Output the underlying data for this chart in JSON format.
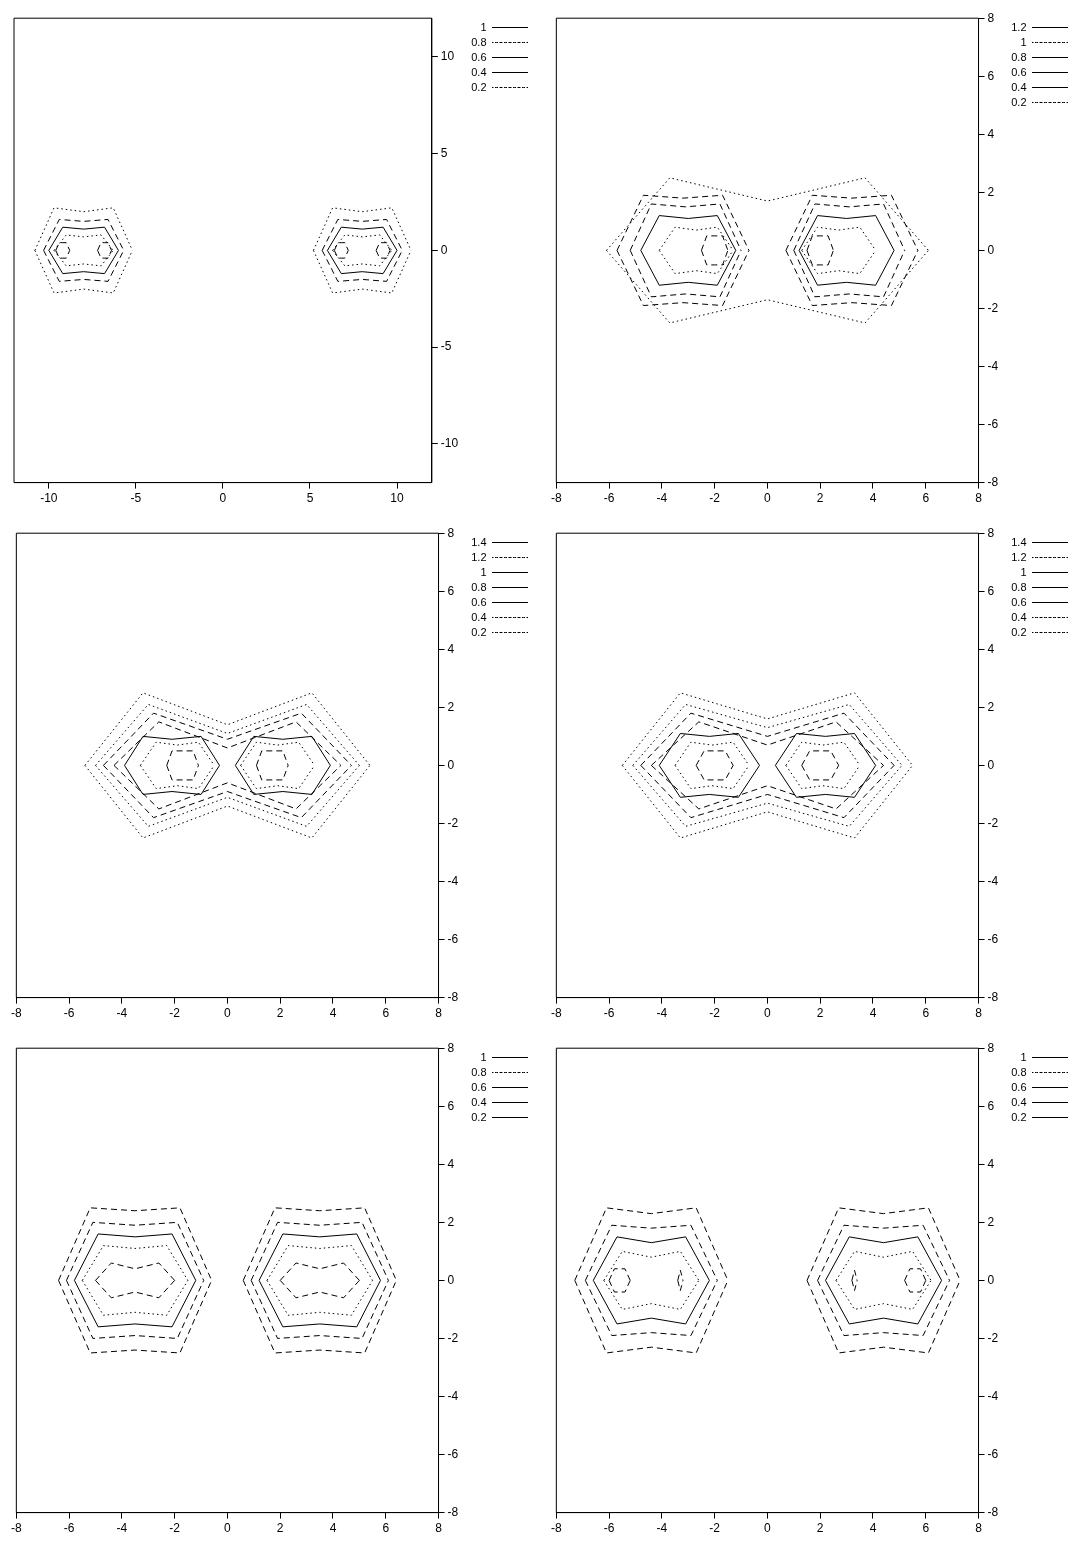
{
  "chart_data": [
    {
      "type": "line",
      "xlim": [
        -12,
        12
      ],
      "ylim": [
        -12,
        12
      ],
      "xticks": [
        -10,
        -5,
        0,
        5,
        10
      ],
      "yticks": [
        -10,
        -5,
        0,
        5,
        10
      ],
      "legend": "top right",
      "marker": "none",
      "series": [
        {
          "name": "1",
          "color": "#000000",
          "line_style": "dashed",
          "x": [
            -9.6,
            -9.4,
            -9.2,
            -9,
            -8.8,
            null,
            -9.6,
            -9.4,
            -9.2,
            -9,
            -8.8,
            null,
            -7.2,
            -7,
            -6.8,
            -6.6,
            -6.4,
            null,
            -7.2,
            -7,
            -6.8,
            -6.6,
            -6.4,
            null,
            6.4,
            6.6,
            6.8,
            7,
            7.2,
            null,
            6.4,
            6.6,
            6.8,
            7,
            7.2,
            null,
            8.8,
            9,
            9.2,
            9.4,
            9.6,
            null,
            8.8,
            9,
            9.2,
            9.4,
            9.6
          ],
          "values": [
            0,
            0.4,
            0.4,
            0.4,
            0,
            null,
            0,
            -0.4,
            -0.4,
            -0.4,
            0,
            null,
            0,
            0.4,
            0.4,
            0.4,
            0,
            null,
            0,
            -0.4,
            -0.4,
            -0.4,
            0,
            null,
            0,
            0.4,
            0.4,
            0.4,
            0,
            null,
            0,
            -0.4,
            -0.4,
            -0.4,
            0,
            null,
            0,
            0.4,
            0.4,
            0.4,
            0,
            null,
            0,
            -0.4,
            -0.4,
            -0.4,
            0
          ]
        },
        {
          "name": "0.8",
          "color": "#000000",
          "line_style": "dotted",
          "x": [
            -9.7,
            -9,
            -8,
            -7,
            -6.3,
            null,
            -9.7,
            -9,
            -8,
            -7,
            -6.3,
            null,
            6.3,
            7,
            8,
            9,
            9.7,
            null,
            6.3,
            7,
            8,
            9,
            9.7
          ],
          "values": [
            0,
            0.8,
            0.7,
            0.8,
            0,
            null,
            0,
            -0.8,
            -0.7,
            -0.8,
            0,
            null,
            0,
            0.8,
            0.7,
            0.8,
            0,
            null,
            0,
            -0.8,
            -0.7,
            -0.8,
            0
          ]
        },
        {
          "name": "0.6",
          "color": "#000000",
          "line_style": "solid",
          "x": [
            -10,
            -9.2,
            -8,
            -6.8,
            -6,
            null,
            -10,
            -9.2,
            -8,
            -6.8,
            -6,
            null,
            6,
            6.8,
            8,
            9.2,
            10,
            null,
            6,
            6.8,
            8,
            9.2,
            10
          ],
          "values": [
            0,
            1.2,
            1.1,
            1.2,
            0,
            null,
            0,
            -1.2,
            -1.1,
            -1.2,
            0,
            null,
            0,
            1.2,
            1.1,
            1.2,
            0,
            null,
            0,
            -1.2,
            -1.1,
            -1.2,
            0
          ]
        },
        {
          "name": "0.4",
          "color": "#000000",
          "line_style": "dashed",
          "x": [
            -10.3,
            -9.4,
            -8,
            -6.6,
            -5.7,
            null,
            -10.3,
            -9.4,
            -8,
            -6.6,
            -5.7,
            null,
            5.7,
            6.6,
            8,
            9.4,
            10.3,
            null,
            5.7,
            6.6,
            8,
            9.4,
            10.3
          ],
          "values": [
            0,
            1.6,
            1.5,
            1.6,
            0,
            null,
            0,
            -1.6,
            -1.5,
            -1.6,
            0,
            null,
            0,
            1.6,
            1.5,
            1.6,
            0,
            null,
            0,
            -1.6,
            -1.5,
            -1.6,
            0
          ]
        },
        {
          "name": "0.2",
          "color": "#000000",
          "line_style": "dotted",
          "x": [
            -10.8,
            -9.7,
            -8,
            -6.3,
            -5.2,
            null,
            -10.8,
            -9.7,
            -8,
            -6.3,
            -5.2,
            null,
            5.2,
            6.3,
            8,
            9.7,
            10.8,
            null,
            5.2,
            6.3,
            8,
            9.7,
            10.8
          ],
          "values": [
            0,
            2.2,
            2,
            2.2,
            0,
            null,
            0,
            -2.2,
            -2,
            -2.2,
            0,
            null,
            0,
            2.2,
            2,
            2.2,
            0,
            null,
            0,
            -2.2,
            -2,
            -2.2,
            0
          ]
        }
      ]
    },
    {
      "type": "line",
      "xlim": [
        -8,
        8
      ],
      "ylim": [
        -8,
        8
      ],
      "xticks": [
        -8,
        -6,
        -4,
        -2,
        0,
        2,
        4,
        6,
        8
      ],
      "yticks": [
        -8,
        -6,
        -4,
        -2,
        0,
        2,
        4,
        6,
        8
      ],
      "legend": "top right",
      "marker": "none",
      "series": [
        {
          "name": "1.2",
          "color": "#000000",
          "line_style": "dashed",
          "x": [
            -2.5,
            -2.3,
            -2,
            -1.7,
            -1.5,
            null,
            -2.5,
            -2.3,
            -2,
            -1.7,
            -1.5,
            null,
            1.5,
            1.7,
            2,
            2.3,
            2.5,
            null,
            1.5,
            1.7,
            2,
            2.3,
            2.5
          ],
          "values": [
            0,
            0.5,
            0.5,
            0.5,
            0,
            null,
            0,
            -0.5,
            -0.5,
            -0.5,
            0,
            null,
            0,
            0.5,
            0.5,
            0.5,
            0,
            null,
            0,
            -0.5,
            -0.5,
            -0.5,
            0
          ]
        },
        {
          "name": "1",
          "color": "#000000",
          "line_style": "dotted",
          "x": [
            -4.1,
            -3.5,
            -2.7,
            -1.9,
            -1.3,
            null,
            -4.1,
            -3.5,
            -2.7,
            -1.9,
            -1.3,
            null,
            1.3,
            1.9,
            2.7,
            3.5,
            4.1,
            null,
            1.3,
            1.9,
            2.7,
            3.5,
            4.1
          ],
          "values": [
            0,
            0.8,
            0.7,
            0.8,
            0,
            null,
            0,
            -0.8,
            -0.7,
            -0.8,
            0,
            null,
            0,
            0.8,
            0.7,
            0.8,
            0,
            null,
            0,
            -0.8,
            -0.7,
            -0.8,
            0
          ]
        },
        {
          "name": "0.8",
          "color": "#000000",
          "line_style": "solid",
          "x": [
            -4.8,
            -4.1,
            -3,
            -1.9,
            -1.2,
            null,
            -4.8,
            -4.1,
            -3,
            -1.9,
            -1.2,
            null,
            1.2,
            1.9,
            3,
            4.1,
            4.8,
            null,
            1.2,
            1.9,
            3,
            4.1,
            4.8
          ],
          "values": [
            0,
            1.2,
            1.1,
            1.2,
            0,
            null,
            0,
            -1.2,
            -1.1,
            -1.2,
            0,
            null,
            0,
            1.2,
            1.1,
            1.2,
            0,
            null,
            0,
            -1.2,
            -1.1,
            -1.2,
            0
          ]
        },
        {
          "name": "0.6",
          "color": "#000000",
          "line_style": "dashed",
          "x": [
            -5.2,
            -4.4,
            -3.1,
            -1.8,
            -1,
            null,
            -5.2,
            -4.4,
            -3.1,
            -1.8,
            -1,
            null,
            1,
            1.8,
            3.1,
            4.4,
            5.2,
            null,
            1,
            1.8,
            3.1,
            4.4,
            5.2
          ],
          "values": [
            0,
            1.6,
            1.5,
            1.6,
            0,
            null,
            0,
            -1.6,
            -1.5,
            -1.6,
            0,
            null,
            0,
            1.6,
            1.5,
            1.6,
            0,
            null,
            0,
            -1.6,
            -1.5,
            -1.6,
            0
          ]
        },
        {
          "name": "0.4",
          "color": "#000000",
          "line_style": "dashed",
          "x": [
            -5.7,
            -4.7,
            -3.2,
            -1.7,
            -0.7,
            null,
            -5.7,
            -4.7,
            -3.2,
            -1.7,
            -0.7,
            null,
            0.7,
            1.7,
            3.2,
            4.7,
            5.7,
            null,
            0.7,
            1.7,
            3.2,
            4.7,
            5.7
          ],
          "values": [
            0,
            1.9,
            1.8,
            1.9,
            0,
            null,
            0,
            -1.9,
            -1.8,
            -1.9,
            0,
            null,
            0,
            1.9,
            1.8,
            1.9,
            0,
            null,
            0,
            -1.9,
            -1.8,
            -1.9,
            0
          ]
        },
        {
          "name": "0.2",
          "color": "#000000",
          "line_style": "dotted",
          "x": [
            -6.1,
            -3.7,
            0,
            3.7,
            6.1,
            null,
            -6.1,
            -3.7,
            0,
            3.7,
            6.1
          ],
          "values": [
            0,
            2.5,
            1.7,
            2.5,
            0,
            null,
            0,
            -2.5,
            -1.7,
            -2.5,
            0
          ]
        }
      ]
    },
    {
      "type": "line",
      "xlim": [
        -8,
        8
      ],
      "ylim": [
        -8,
        8
      ],
      "xticks": [
        -8,
        -6,
        -4,
        -2,
        0,
        2,
        4,
        6,
        8
      ],
      "yticks": [
        -8,
        -6,
        -4,
        -2,
        0,
        2,
        4,
        6,
        8
      ],
      "legend": "top right",
      "marker": "none",
      "series": [
        {
          "name": "1.4",
          "color": "#000000",
          "line_style": "dashed",
          "x": [
            -2.3,
            -2.1,
            -1.7,
            -1.3,
            -1.1,
            null,
            -2.3,
            -2.1,
            -1.7,
            -1.3,
            -1.1,
            null,
            1.1,
            1.3,
            1.7,
            2.1,
            2.3,
            null,
            1.1,
            1.3,
            1.7,
            2.1,
            2.3
          ],
          "values": [
            0,
            0.5,
            0.5,
            0.5,
            0,
            null,
            0,
            -0.5,
            -0.5,
            -0.5,
            0,
            null,
            0,
            0.5,
            0.5,
            0.5,
            0,
            null,
            0,
            -0.5,
            -0.5,
            -0.5,
            0
          ]
        },
        {
          "name": "1.2",
          "color": "#000000",
          "line_style": "dotted",
          "x": [
            -3.3,
            -2.7,
            -1.9,
            -1.1,
            -0.5,
            null,
            -3.3,
            -2.7,
            -1.9,
            -1.1,
            -0.5,
            null,
            0.5,
            1.1,
            1.9,
            2.7,
            3.3,
            null,
            0.5,
            1.1,
            1.9,
            2.7,
            3.3
          ],
          "values": [
            0,
            0.8,
            0.7,
            0.8,
            0,
            null,
            0,
            -0.8,
            -0.7,
            -0.8,
            0,
            null,
            0,
            0.8,
            0.7,
            0.8,
            0,
            null,
            0,
            -0.8,
            -0.7,
            -0.8,
            0
          ]
        },
        {
          "name": "1",
          "color": "#000000",
          "line_style": "solid",
          "x": [
            -3.9,
            -3.2,
            -2.1,
            -1,
            -0.3,
            null,
            -3.9,
            -3.2,
            -2.1,
            -1,
            -0.3,
            null,
            0.3,
            1,
            2.1,
            3.2,
            3.9,
            null,
            0.3,
            1,
            2.1,
            3.2,
            3.9
          ],
          "values": [
            0,
            1,
            0.9,
            1,
            0,
            null,
            0,
            -1,
            -0.9,
            -1,
            0,
            null,
            0,
            1,
            0.9,
            1,
            0,
            null,
            0,
            -1,
            -0.9,
            -1,
            0
          ]
        },
        {
          "name": "0.8",
          "color": "#000000",
          "line_style": "dashed",
          "x": [
            -4.3,
            -2.6,
            0,
            2.6,
            4.3,
            null,
            -4.3,
            -2.6,
            0,
            2.6,
            4.3
          ],
          "values": [
            0,
            1.5,
            0.6,
            1.5,
            0,
            null,
            0,
            -1.5,
            -0.6,
            -1.5,
            0
          ]
        },
        {
          "name": "0.6",
          "color": "#000000",
          "line_style": "dashed",
          "x": [
            -4.7,
            -2.8,
            0,
            2.8,
            4.7,
            null,
            -4.7,
            -2.8,
            0,
            2.8,
            4.7
          ],
          "values": [
            0,
            1.8,
            0.9,
            1.8,
            0,
            null,
            0,
            -1.8,
            -0.9,
            -1.8,
            0
          ]
        },
        {
          "name": "0.4",
          "color": "#000000",
          "line_style": "dotted",
          "x": [
            -5,
            -3,
            0,
            3,
            5,
            null,
            -5,
            -3,
            0,
            3,
            5
          ],
          "values": [
            0,
            2.1,
            1.1,
            2.1,
            0,
            null,
            0,
            -2.1,
            -1.1,
            -2.1,
            0
          ]
        },
        {
          "name": "0.2",
          "color": "#000000",
          "line_style": "dotted",
          "x": [
            -5.4,
            -3.2,
            0,
            3.2,
            5.4,
            null,
            -5.4,
            -3.2,
            0,
            3.2,
            5.4
          ],
          "values": [
            0,
            2.5,
            1.4,
            2.5,
            0,
            null,
            0,
            -2.5,
            -1.4,
            -2.5,
            0
          ]
        }
      ]
    },
    {
      "type": "line",
      "xlim": [
        -8,
        8
      ],
      "ylim": [
        -8,
        8
      ],
      "xticks": [
        -8,
        -6,
        -4,
        -2,
        0,
        2,
        4,
        6,
        8
      ],
      "yticks": [
        -8,
        -6,
        -4,
        -2,
        0,
        2,
        4,
        6,
        8
      ],
      "legend": "top right",
      "marker": "none",
      "series": [
        {
          "name": "1.4",
          "color": "#000000",
          "line_style": "dashed",
          "x": [
            -2.7,
            -2.4,
            -2,
            -1.6,
            -1.3,
            null,
            -2.7,
            -2.4,
            -2,
            -1.6,
            -1.3,
            null,
            1.3,
            1.6,
            2,
            2.4,
            2.7,
            null,
            1.3,
            1.6,
            2,
            2.4,
            2.7
          ],
          "values": [
            0,
            0.5,
            0.5,
            0.5,
            0,
            null,
            0,
            -0.5,
            -0.5,
            -0.5,
            0,
            null,
            0,
            0.5,
            0.5,
            0.5,
            0,
            null,
            0,
            -0.5,
            -0.5,
            -0.5,
            0
          ]
        },
        {
          "name": "1.2",
          "color": "#000000",
          "line_style": "dotted",
          "x": [
            -3.5,
            -2.9,
            -2.1,
            -1.3,
            -0.7,
            null,
            -3.5,
            -2.9,
            -2.1,
            -1.3,
            -0.7,
            null,
            0.7,
            1.3,
            2.1,
            2.9,
            3.5,
            null,
            0.7,
            1.3,
            2.1,
            2.9,
            3.5
          ],
          "values": [
            0,
            0.8,
            0.7,
            0.8,
            0,
            null,
            0,
            -0.8,
            -0.7,
            -0.8,
            0,
            null,
            0,
            0.8,
            0.7,
            0.8,
            0,
            null,
            0,
            -0.8,
            -0.7,
            -0.8,
            0
          ]
        },
        {
          "name": "1",
          "color": "#000000",
          "line_style": "solid",
          "x": [
            -4.1,
            -3.3,
            -2.2,
            -1.1,
            -0.3,
            null,
            -4.1,
            -3.3,
            -2.2,
            -1.1,
            -0.3,
            null,
            0.3,
            1.1,
            2.2,
            3.3,
            4.1,
            null,
            0.3,
            1.1,
            2.2,
            3.3,
            4.1
          ],
          "values": [
            0,
            1.1,
            1,
            1.1,
            0,
            null,
            0,
            -1.1,
            -1,
            -1.1,
            0,
            null,
            0,
            1.1,
            1,
            1.1,
            0,
            null,
            0,
            -1.1,
            -1,
            -1.1,
            0
          ]
        },
        {
          "name": "0.8",
          "color": "#000000",
          "line_style": "dashed",
          "x": [
            -4.4,
            -2.6,
            0,
            2.6,
            4.4,
            null,
            -4.4,
            -2.6,
            0,
            2.6,
            4.4
          ],
          "values": [
            0,
            1.5,
            0.7,
            1.5,
            0,
            null,
            0,
            -1.5,
            -0.7,
            -1.5,
            0
          ]
        },
        {
          "name": "0.6",
          "color": "#000000",
          "line_style": "dashed",
          "x": [
            -4.8,
            -2.9,
            0,
            2.9,
            4.8,
            null,
            -4.8,
            -2.9,
            0,
            2.9,
            4.8
          ],
          "values": [
            0,
            1.8,
            1,
            1.8,
            0,
            null,
            0,
            -1.8,
            -1,
            -1.8,
            0
          ]
        },
        {
          "name": "0.4",
          "color": "#000000",
          "line_style": "dotted",
          "x": [
            -5.1,
            -3.1,
            0,
            3.1,
            5.1,
            null,
            -5.1,
            -3.1,
            0,
            3.1,
            5.1
          ],
          "values": [
            0,
            2.1,
            1.3,
            2.1,
            0,
            null,
            0,
            -2.1,
            -1.3,
            -2.1,
            0
          ]
        },
        {
          "name": "0.2",
          "color": "#000000",
          "line_style": "dotted",
          "x": [
            -5.5,
            -3.3,
            0,
            3.3,
            5.5,
            null,
            -5.5,
            -3.3,
            0,
            3.3,
            5.5
          ],
          "values": [
            0,
            2.5,
            1.6,
            2.5,
            0,
            null,
            0,
            -2.5,
            -1.6,
            -2.5,
            0
          ]
        }
      ]
    },
    {
      "type": "line",
      "xlim": [
        -8,
        8
      ],
      "ylim": [
        -8,
        8
      ],
      "xticks": [
        -8,
        -6,
        -4,
        -2,
        0,
        2,
        4,
        6,
        8
      ],
      "yticks": [
        -8,
        -6,
        -4,
        -2,
        0,
        2,
        4,
        6,
        8
      ],
      "legend": "top right",
      "marker": "none",
      "series": [
        {
          "name": "1",
          "color": "#000000",
          "line_style": "dashed",
          "x": [
            -5,
            -4.4,
            -3.5,
            -2.6,
            -2,
            null,
            -5,
            -4.4,
            -3.5,
            -2.6,
            -2,
            null,
            2,
            2.6,
            3.5,
            4.4,
            5,
            null,
            2,
            2.6,
            3.5,
            4.4,
            5
          ],
          "values": [
            0,
            0.6,
            0.4,
            0.6,
            0,
            null,
            0,
            -0.6,
            -0.4,
            -0.6,
            0,
            null,
            0,
            0.6,
            0.4,
            0.6,
            0,
            null,
            0,
            -0.6,
            -0.4,
            -0.6,
            0
          ]
        },
        {
          "name": "0.8",
          "color": "#000000",
          "line_style": "dotted",
          "x": [
            -5.5,
            -4.7,
            -3.5,
            -2.3,
            -1.5,
            null,
            -5.5,
            -4.7,
            -3.5,
            -2.3,
            -1.5,
            null,
            1.5,
            2.3,
            3.5,
            4.7,
            5.5,
            null,
            1.5,
            2.3,
            3.5,
            4.7,
            5.5
          ],
          "values": [
            0,
            1.2,
            1.1,
            1.2,
            0,
            null,
            0,
            -1.2,
            -1.1,
            -1.2,
            0,
            null,
            0,
            1.2,
            1.1,
            1.2,
            0,
            null,
            0,
            -1.2,
            -1.1,
            -1.2,
            0
          ]
        },
        {
          "name": "0.6",
          "color": "#000000",
          "line_style": "solid",
          "x": [
            -5.8,
            -4.9,
            -3.5,
            -2.1,
            -1.2,
            null,
            -5.8,
            -4.9,
            -3.5,
            -2.1,
            -1.2,
            null,
            1.2,
            2.1,
            3.5,
            4.9,
            5.8,
            null,
            1.2,
            2.1,
            3.5,
            4.9,
            5.8
          ],
          "values": [
            0,
            1.6,
            1.5,
            1.6,
            0,
            null,
            0,
            -1.6,
            -1.5,
            -1.6,
            0,
            null,
            0,
            1.6,
            1.5,
            1.6,
            0,
            null,
            0,
            -1.6,
            -1.5,
            -1.6,
            0
          ]
        },
        {
          "name": "0.4",
          "color": "#000000",
          "line_style": "dashed",
          "x": [
            -6.1,
            -5.1,
            -3.5,
            -1.9,
            -0.9,
            null,
            -6.1,
            -5.1,
            -3.5,
            -1.9,
            -0.9,
            null,
            0.9,
            1.9,
            3.5,
            5.1,
            6.1,
            null,
            0.9,
            1.9,
            3.5,
            5.1,
            6.1
          ],
          "values": [
            0,
            2,
            1.9,
            2,
            0,
            null,
            0,
            -2,
            -1.9,
            -2,
            0,
            null,
            0,
            2,
            1.9,
            2,
            0,
            null,
            0,
            -2,
            -1.9,
            -2,
            0
          ]
        },
        {
          "name": "0.2",
          "color": "#000000",
          "line_style": "dashed",
          "x": [
            -6.4,
            -5.2,
            -3.5,
            -1.8,
            -0.6,
            null,
            -6.4,
            -5.2,
            -3.5,
            -1.8,
            -0.6,
            null,
            0.6,
            1.8,
            3.5,
            5.2,
            6.4,
            null,
            0.6,
            1.8,
            3.5,
            5.2,
            6.4
          ],
          "values": [
            0,
            2.5,
            2.4,
            2.5,
            0,
            null,
            0,
            -2.5,
            -2.4,
            -2.5,
            0,
            null,
            0,
            2.5,
            2.4,
            2.5,
            0,
            null,
            0,
            -2.5,
            -2.4,
            -2.5,
            0
          ]
        }
      ]
    },
    {
      "type": "line",
      "xlim": [
        -8,
        8
      ],
      "ylim": [
        -8,
        8
      ],
      "xticks": [
        -8,
        -6,
        -4,
        -2,
        0,
        2,
        4,
        6,
        8
      ],
      "yticks": [
        -8,
        -6,
        -4,
        -2,
        0,
        2,
        4,
        6,
        8
      ],
      "legend": "top right",
      "marker": "none",
      "series": [
        {
          "name": "1",
          "color": "#000000",
          "line_style": "dashed",
          "x": [
            -6,
            -5.8,
            -5.6,
            -5.4,
            -5.2,
            null,
            -6,
            -5.8,
            -5.6,
            -5.4,
            -5.2,
            null,
            -3.4,
            -3.3,
            -3.2,
            null,
            -3.4,
            -3.3,
            -3.2,
            null,
            3.2,
            3.3,
            3.4,
            null,
            3.2,
            3.3,
            3.4,
            null,
            5.2,
            5.4,
            5.6,
            5.8,
            6,
            null,
            5.2,
            5.4,
            5.6,
            5.8,
            6
          ],
          "values": [
            0,
            0.4,
            0.4,
            0.4,
            0,
            null,
            0,
            -0.4,
            -0.4,
            -0.4,
            0,
            null,
            0,
            0.35,
            0,
            null,
            0,
            -0.35,
            0,
            null,
            0,
            0.35,
            0,
            null,
            0,
            -0.35,
            0,
            null,
            0,
            0.4,
            0.4,
            0.4,
            0,
            null,
            0,
            -0.4,
            -0.4,
            -0.4,
            0
          ]
        },
        {
          "name": "0.8",
          "color": "#000000",
          "line_style": "dotted",
          "x": [
            -6.2,
            -5.5,
            -4.4,
            -3.3,
            -2.6,
            null,
            -6.2,
            -5.5,
            -4.4,
            -3.3,
            -2.6,
            null,
            2.6,
            3.3,
            4.4,
            5.5,
            6.2,
            null,
            2.6,
            3.3,
            4.4,
            5.5,
            6.2
          ],
          "values": [
            0,
            1,
            0.8,
            1,
            0,
            null,
            0,
            -1,
            -0.8,
            -1,
            0,
            null,
            0,
            1,
            0.8,
            1,
            0,
            null,
            0,
            -1,
            -0.8,
            -1,
            0
          ]
        },
        {
          "name": "0.6",
          "color": "#000000",
          "line_style": "solid",
          "x": [
            -6.6,
            -5.7,
            -4.4,
            -3.1,
            -2.2,
            null,
            -6.6,
            -5.7,
            -4.4,
            -3.1,
            -2.2,
            null,
            2.2,
            3.1,
            4.4,
            5.7,
            6.6,
            null,
            2.2,
            3.1,
            4.4,
            5.7,
            6.6
          ],
          "values": [
            0,
            1.5,
            1.3,
            1.5,
            0,
            null,
            0,
            -1.5,
            -1.3,
            -1.5,
            0,
            null,
            0,
            1.5,
            1.3,
            1.5,
            0,
            null,
            0,
            -1.5,
            -1.3,
            -1.5,
            0
          ]
        },
        {
          "name": "0.4",
          "color": "#000000",
          "line_style": "dashed",
          "x": [
            -6.9,
            -5.9,
            -4.4,
            -2.9,
            -1.9,
            null,
            -6.9,
            -5.9,
            -4.4,
            -2.9,
            -1.9,
            null,
            1.9,
            2.9,
            4.4,
            5.9,
            6.9,
            null,
            1.9,
            2.9,
            4.4,
            5.9,
            6.9
          ],
          "values": [
            0,
            1.9,
            1.8,
            1.9,
            0,
            null,
            0,
            -1.9,
            -1.8,
            -1.9,
            0,
            null,
            0,
            1.9,
            1.8,
            1.9,
            0,
            null,
            0,
            -1.9,
            -1.8,
            -1.9,
            0
          ]
        },
        {
          "name": "0.2",
          "color": "#000000",
          "line_style": "dashed",
          "x": [
            -7.3,
            -6.1,
            -4.4,
            -2.7,
            -1.5,
            null,
            -7.3,
            -6.1,
            -4.4,
            -2.7,
            -1.5,
            null,
            1.5,
            2.7,
            4.4,
            6.1,
            7.3,
            null,
            1.5,
            2.7,
            4.4,
            6.1,
            7.3
          ],
          "values": [
            0,
            2.5,
            2.3,
            2.5,
            0,
            null,
            0,
            -2.5,
            -2.3,
            -2.5,
            0,
            null,
            0,
            2.5,
            2.3,
            2.5,
            0,
            null,
            0,
            -2.5,
            -2.3,
            -2.5,
            0
          ]
        }
      ]
    }
  ]
}
